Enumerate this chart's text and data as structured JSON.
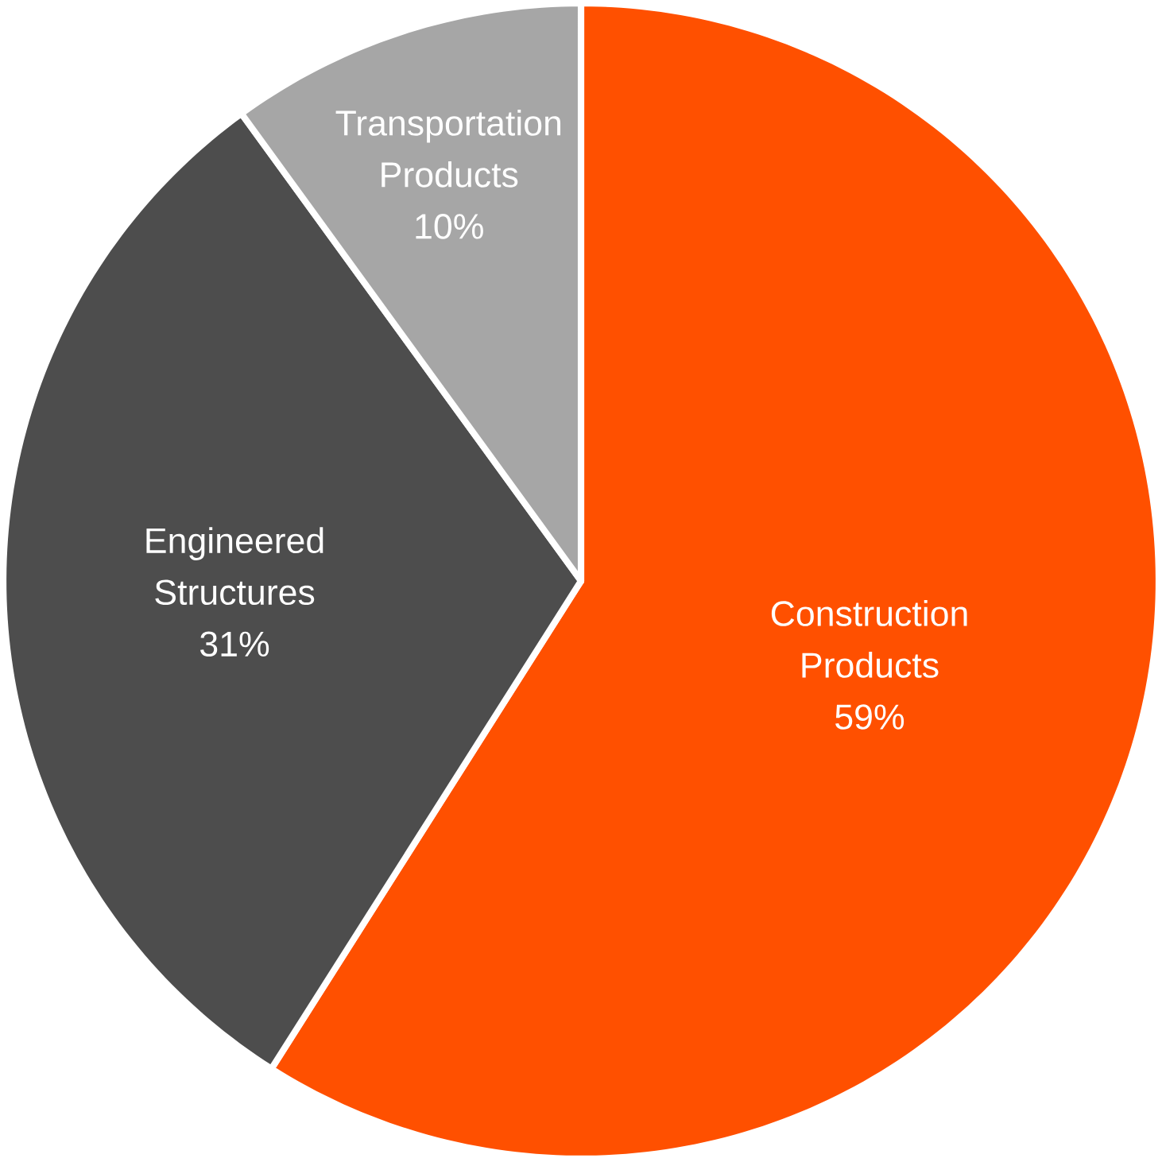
{
  "chart_data": {
    "type": "pie",
    "categories": [
      "Construction Products",
      "Engineered Structures",
      "Transportation Products"
    ],
    "values": [
      59,
      31,
      10
    ],
    "colors": [
      "#ff5000",
      "#4d4d4d",
      "#a6a6a6"
    ],
    "value_labels": [
      "59%",
      "31%",
      "10%"
    ]
  }
}
